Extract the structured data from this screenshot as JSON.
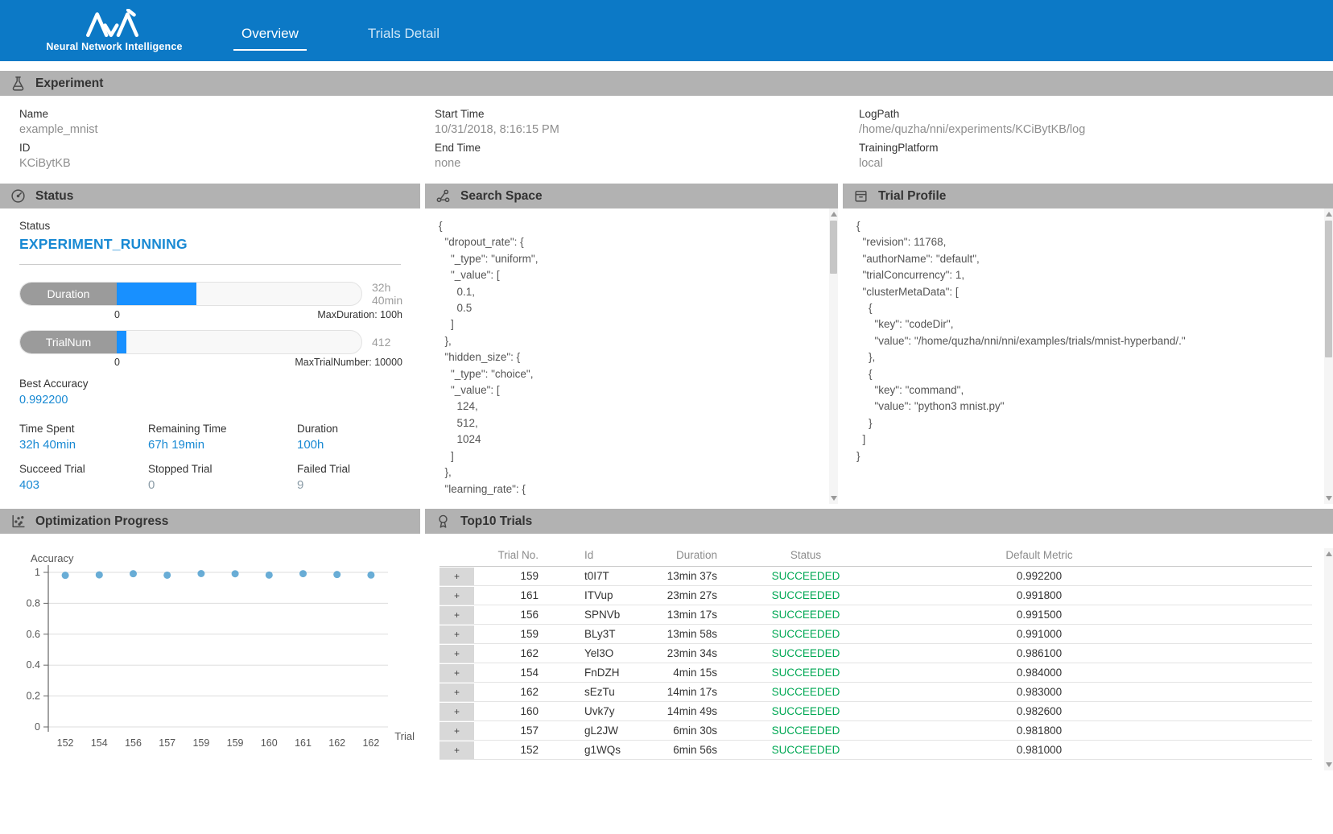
{
  "header": {
    "brand": "Neural Network Intelligence",
    "tabs": [
      {
        "label": "Overview",
        "active": true
      },
      {
        "label": "Trials Detail",
        "active": false
      }
    ]
  },
  "experiment": {
    "title": "Experiment",
    "fields": [
      {
        "label": "Name",
        "value": "example_mnist"
      },
      {
        "label": "ID",
        "value": "KCiBytKB"
      },
      {
        "label": "Start Time",
        "value": "10/31/2018, 8:16:15 PM"
      },
      {
        "label": "End Time",
        "value": "none"
      },
      {
        "label": "LogPath",
        "value": "/home/quzha/nni/experiments/KCiBytKB/log"
      },
      {
        "label": "TrainingPlatform",
        "value": "local"
      }
    ]
  },
  "status_panel": {
    "title": "Status",
    "status_label": "Status",
    "status_value": "EXPERIMENT_RUNNING",
    "duration_bar": {
      "label": "Duration",
      "right_text": "32h 40min",
      "min": "0",
      "max_text": "MaxDuration: 100h",
      "percent": 32.7
    },
    "trialnum_bar": {
      "label": "TrialNum",
      "right_text": "412",
      "min": "0",
      "max_text": "MaxTrialNumber: 10000",
      "percent": 4.1
    },
    "best_accuracy": {
      "label": "Best Accuracy",
      "value": "0.992200"
    },
    "stats": [
      {
        "label": "Time Spent",
        "value": "32h 40min"
      },
      {
        "label": "Remaining Time",
        "value": "67h 19min"
      },
      {
        "label": "Duration",
        "value": "100h"
      },
      {
        "label": "Succeed Trial",
        "value": "403"
      },
      {
        "label": "Stopped Trial",
        "value": "0"
      },
      {
        "label": "Failed Trial",
        "value": "9"
      }
    ]
  },
  "search_space": {
    "title": "Search Space",
    "lines": [
      "{",
      "  \"dropout_rate\": {",
      "    \"_type\": \"uniform\",",
      "    \"_value\": [",
      "      0.1,",
      "      0.5",
      "    ]",
      "  },",
      "  \"hidden_size\": {",
      "    \"_type\": \"choice\",",
      "    \"_value\": [",
      "      124,",
      "      512,",
      "      1024",
      "    ]",
      "  },",
      "  \"learning_rate\": {"
    ]
  },
  "trial_profile": {
    "title": "Trial Profile",
    "lines": [
      "{",
      "  \"revision\": 11768,",
      "  \"authorName\": \"default\",",
      "  \"trialConcurrency\": 1,",
      "  \"clusterMetaData\": [",
      "    {",
      "      \"key\": \"codeDir\",",
      "      \"value\": \"/home/quzha/nni/nni/examples/trials/mnist-hyperband/.\"",
      "    },",
      "    {",
      "      \"key\": \"command\",",
      "      \"value\": \"python3 mnist.py\"",
      "    }",
      "  ]",
      "}"
    ]
  },
  "optimization": {
    "title": "Optimization Progress"
  },
  "chart_data": {
    "type": "scatter",
    "title": "Optimization Progress",
    "ylabel": "Accuracy",
    "xlabel": "Trial",
    "ylim": [
      0,
      1
    ],
    "yticks": [
      0,
      0.2,
      0.4,
      0.6,
      0.8,
      1
    ],
    "x_tick_labels": [
      "152",
      "154",
      "156",
      "157",
      "159",
      "159",
      "160",
      "161",
      "162",
      "162"
    ],
    "values": [
      0.981,
      0.984,
      0.9915,
      0.9818,
      0.9922,
      0.991,
      0.9826,
      0.9918,
      0.9861,
      0.983
    ],
    "grid": true,
    "legend": "none",
    "point_color": "#4f9fcf"
  },
  "top10": {
    "title": "Top10 Trials",
    "expand_symbol": "+",
    "columns": [
      "Trial No.",
      "Id",
      "Duration",
      "Status",
      "Default Metric"
    ],
    "rows": [
      {
        "trial_no": "159",
        "id": "t0I7T",
        "duration": "13min 37s",
        "status": "SUCCEEDED",
        "metric": "0.992200"
      },
      {
        "trial_no": "161",
        "id": "ITVup",
        "duration": "23min 27s",
        "status": "SUCCEEDED",
        "metric": "0.991800"
      },
      {
        "trial_no": "156",
        "id": "SPNVb",
        "duration": "13min 17s",
        "status": "SUCCEEDED",
        "metric": "0.991500"
      },
      {
        "trial_no": "159",
        "id": "BLy3T",
        "duration": "13min 58s",
        "status": "SUCCEEDED",
        "metric": "0.991000"
      },
      {
        "trial_no": "162",
        "id": "Yel3O",
        "duration": "23min 34s",
        "status": "SUCCEEDED",
        "metric": "0.986100"
      },
      {
        "trial_no": "154",
        "id": "FnDZH",
        "duration": "4min 15s",
        "status": "SUCCEEDED",
        "metric": "0.984000"
      },
      {
        "trial_no": "162",
        "id": "sEzTu",
        "duration": "14min 17s",
        "status": "SUCCEEDED",
        "metric": "0.983000"
      },
      {
        "trial_no": "160",
        "id": "Uvk7y",
        "duration": "14min 49s",
        "status": "SUCCEEDED",
        "metric": "0.982600"
      },
      {
        "trial_no": "157",
        "id": "gL2JW",
        "duration": "6min 30s",
        "status": "SUCCEEDED",
        "metric": "0.981800"
      },
      {
        "trial_no": "152",
        "id": "g1WQs",
        "duration": "6min 56s",
        "status": "SUCCEEDED",
        "metric": "0.981000"
      }
    ]
  },
  "colors": {
    "header_blue": "#0c79c6",
    "accent_blue": "#1889d3",
    "progress_fill": "#1890ff",
    "section_bar_gray": "#b2b2b2",
    "success_green": "#00a854",
    "point_blue": "#4f9fcf"
  }
}
